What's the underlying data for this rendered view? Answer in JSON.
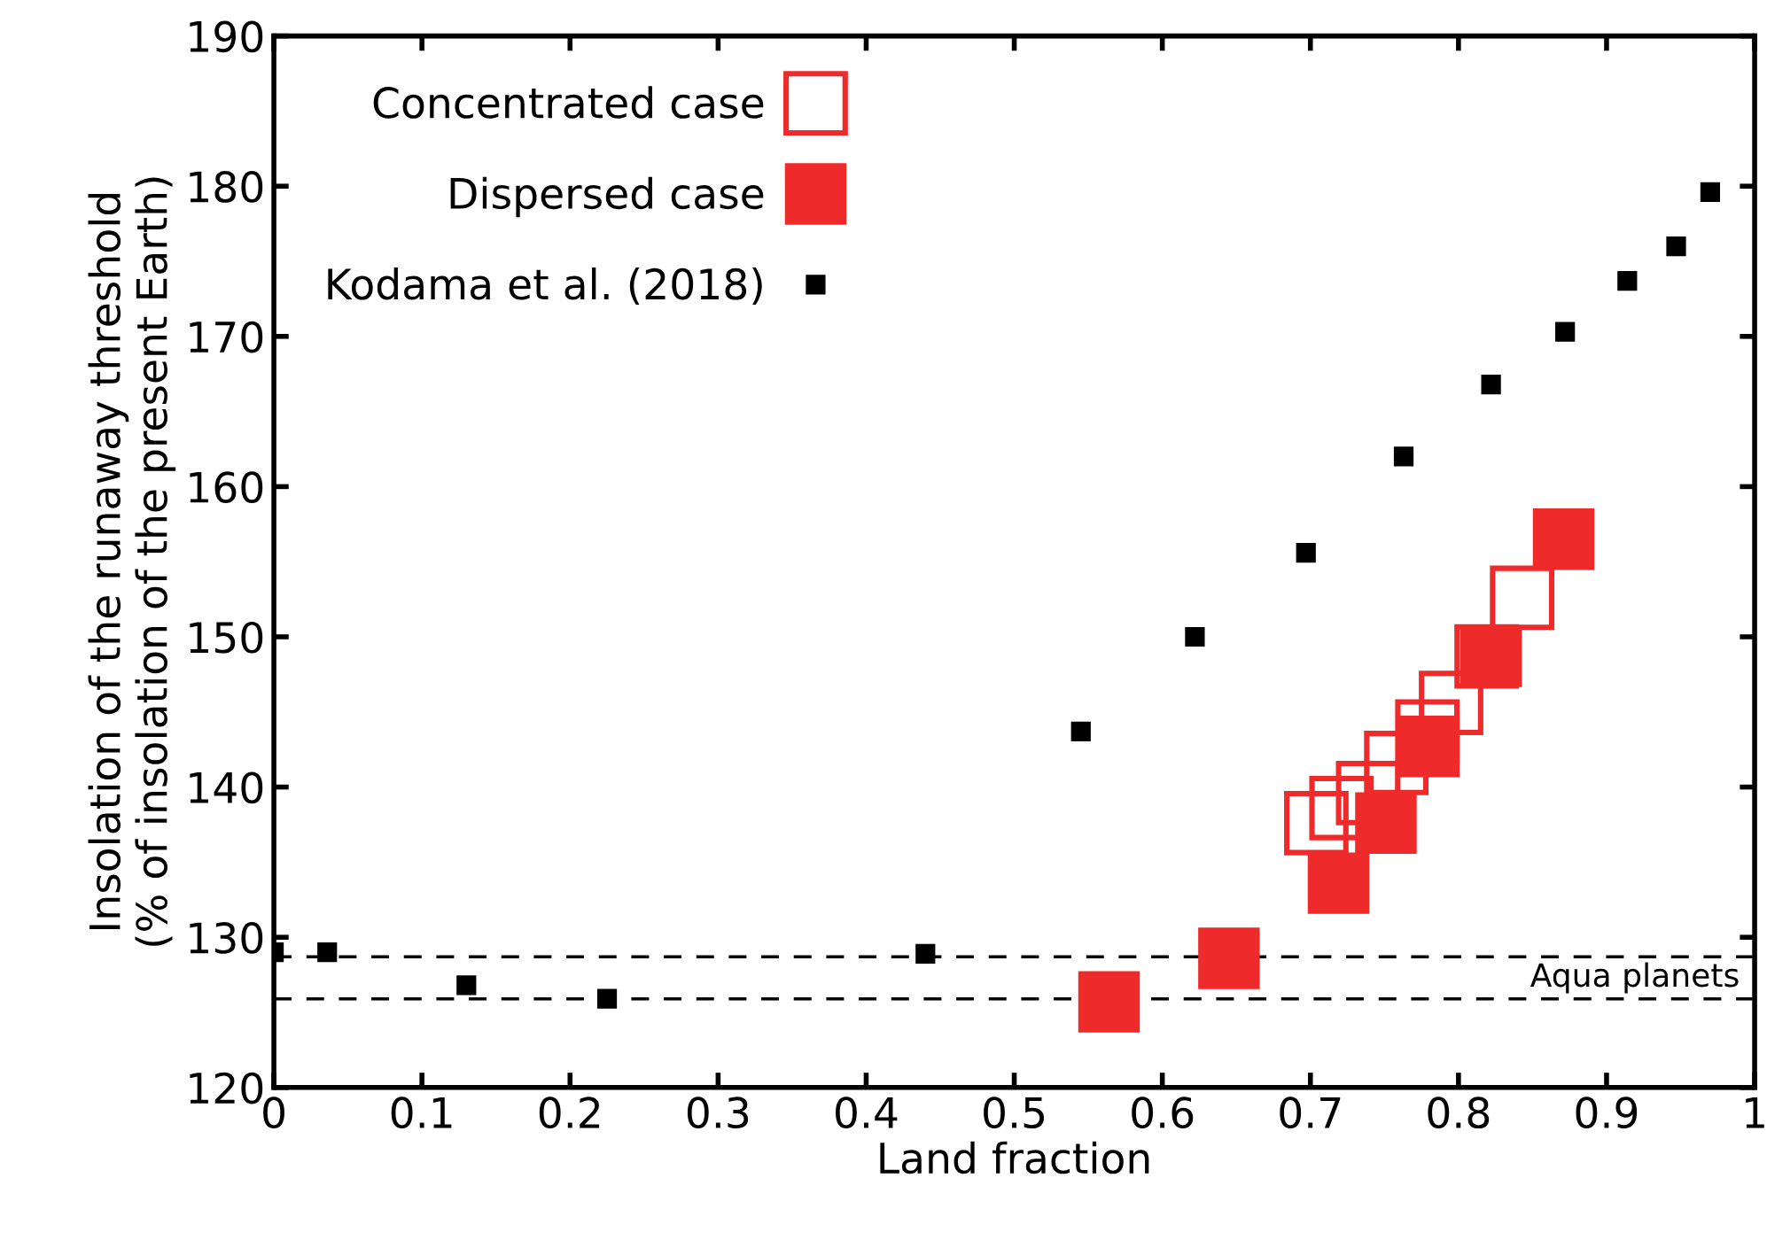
{
  "chart_data": {
    "type": "scatter",
    "xlabel": "Land fraction",
    "ylabel": "Insolation of the runaway threshold\n(% of insolation of the present Earth)",
    "xlim": [
      0,
      1
    ],
    "ylim": [
      120,
      190
    ],
    "xticks": [
      0,
      0.1,
      0.2,
      0.3,
      0.4,
      0.5,
      0.6,
      0.7,
      0.8,
      0.9,
      1
    ],
    "yticks": [
      120,
      130,
      140,
      150,
      160,
      170,
      180,
      190
    ],
    "grid": false,
    "legend": "top left",
    "marker": "square",
    "series": [
      {
        "name": "Concentrated case",
        "color": "#ee2a2a",
        "x": [
          0.704,
          0.721,
          0.739,
          0.758,
          0.779,
          0.795,
          0.819,
          0.843
        ],
        "values": [
          137.6,
          138.6,
          139.6,
          141.6,
          143.7,
          145.6,
          148.7,
          152.6
        ]
      },
      {
        "name": "Dispersed case",
        "color": "#ee2a2a",
        "x": [
          0.564,
          0.645,
          0.719,
          0.751,
          0.78,
          0.822,
          0.871
        ],
        "values": [
          125.7,
          128.6,
          133.6,
          137.6,
          142.7,
          148.7,
          156.5
        ]
      },
      {
        "name": "Kodama et al. (2018)",
        "color": "#000000",
        "x": [
          0,
          0.036,
          0.13,
          0.225,
          0.44,
          0.545,
          0.622,
          0.697,
          0.763,
          0.822,
          0.872,
          0.914,
          0.947,
          0.97
        ],
        "values": [
          129,
          129,
          126.8,
          125.9,
          128.9,
          143.7,
          150,
          155.6,
          162,
          166.8,
          170.3,
          173.7,
          176,
          179.6
        ]
      }
    ],
    "ref_lines": [
      {
        "axis": "y",
        "value": 128.7,
        "color": "#000000",
        "line_style": "dashed"
      },
      {
        "axis": "y",
        "value": 125.9,
        "color": "#000000",
        "line_style": "dashed"
      }
    ],
    "annotations": [
      "Aqua planets"
    ]
  }
}
